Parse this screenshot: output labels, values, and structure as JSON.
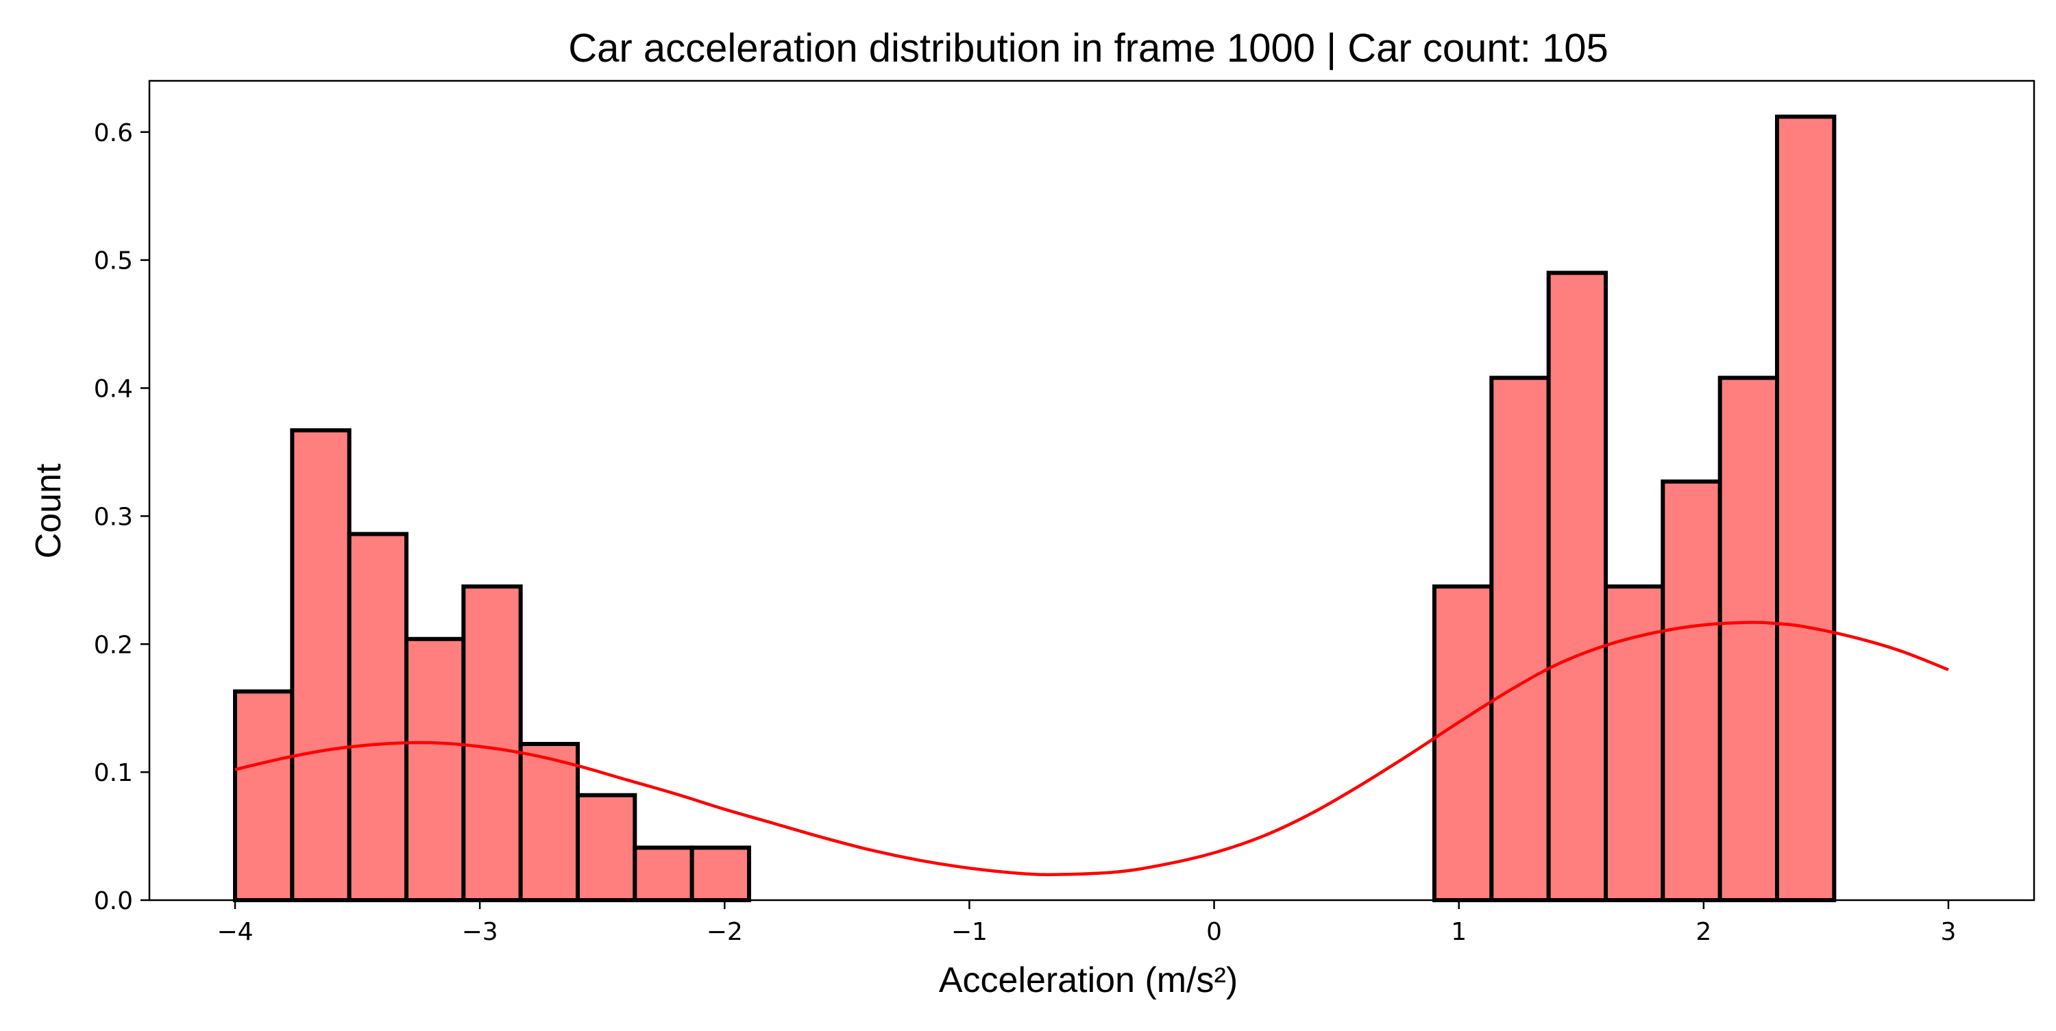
{
  "chart_data": {
    "type": "bar",
    "title": "Car acceleration distribution in frame 1000 | Car count: 105",
    "xlabel": "Acceleration (m/s²)",
    "ylabel": "Count",
    "xlim": [
      -4.35,
      3.35
    ],
    "ylim": [
      0,
      0.64
    ],
    "x_ticks": [
      -4,
      -3,
      -2,
      -1,
      0,
      1,
      2,
      3
    ],
    "x_tick_labels": [
      "−4",
      "−3",
      "−2",
      "−1",
      "0",
      "1",
      "2",
      "3"
    ],
    "y_ticks": [
      0,
      0.1,
      0.2,
      0.3,
      0.4,
      0.5,
      0.6
    ],
    "y_tick_labels": [
      "0.0",
      "0.1",
      "0.2",
      "0.3",
      "0.4",
      "0.5",
      "0.6"
    ],
    "grid": false,
    "bins": {
      "start": -4.0,
      "end": 3.0,
      "count": 30,
      "values": [
        0.163,
        0.367,
        0.286,
        0.204,
        0.245,
        0.122,
        0.082,
        0.041,
        0.041,
        0,
        0,
        0,
        0,
        0,
        0,
        0,
        0,
        0,
        0,
        0,
        0,
        0.245,
        0.408,
        0.49,
        0.245,
        0.327,
        0.408,
        0.612,
        0,
        0
      ]
    },
    "kde_curve": {
      "x": [
        -4.0,
        -3.8,
        -3.6,
        -3.4,
        -3.2,
        -3.0,
        -2.8,
        -2.6,
        -2.4,
        -2.2,
        -2.0,
        -1.8,
        -1.6,
        -1.4,
        -1.2,
        -1.0,
        -0.8,
        -0.65,
        -0.4,
        -0.2,
        0.0,
        0.2,
        0.4,
        0.6,
        0.8,
        1.0,
        1.2,
        1.4,
        1.6,
        1.8,
        2.0,
        2.2,
        2.3,
        2.4,
        2.6,
        2.8,
        3.0
      ],
      "y": [
        0.102,
        0.111,
        0.118,
        0.122,
        0.123,
        0.12,
        0.114,
        0.105,
        0.094,
        0.083,
        0.071,
        0.06,
        0.049,
        0.039,
        0.031,
        0.025,
        0.021,
        0.02,
        0.022,
        0.028,
        0.037,
        0.05,
        0.068,
        0.09,
        0.114,
        0.139,
        0.163,
        0.184,
        0.199,
        0.209,
        0.215,
        0.217,
        0.216,
        0.214,
        0.206,
        0.195,
        0.18
      ]
    },
    "colors": {
      "bar_fill": "#ff7f7f",
      "bar_edge": "#000000",
      "kde_line": "#ff0000"
    }
  }
}
